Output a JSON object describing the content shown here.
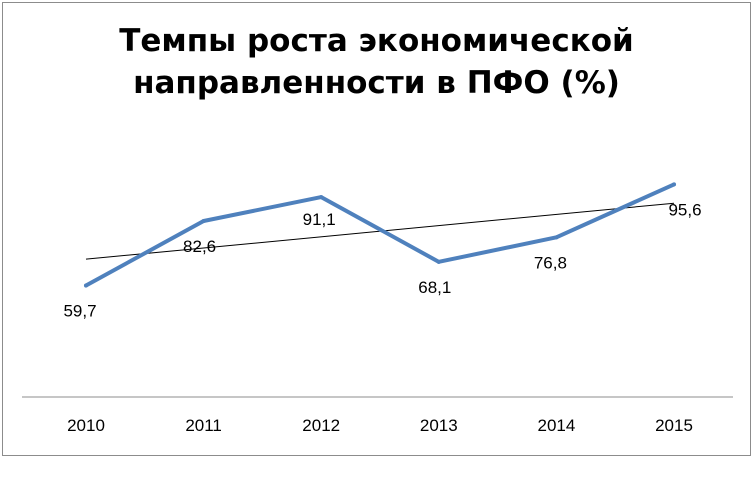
{
  "chart_data": {
    "type": "line",
    "title_lines": [
      "Темпы роста экономической",
      "направленности в ПФО (%)"
    ],
    "categories": [
      "2010",
      "2011",
      "2012",
      "2013",
      "2014",
      "2015"
    ],
    "series": [
      {
        "values": [
          59.7,
          82.6,
          91.1,
          68.1,
          76.8,
          95.6
        ],
        "color": "#4f81bd"
      }
    ],
    "data_labels": [
      "59,7",
      "82,6",
      "91,1",
      "68,1",
      "76,8",
      "95,6"
    ],
    "trendline": {
      "type": "linear",
      "color": "#000000"
    },
    "legend": "none",
    "grid": false
  }
}
